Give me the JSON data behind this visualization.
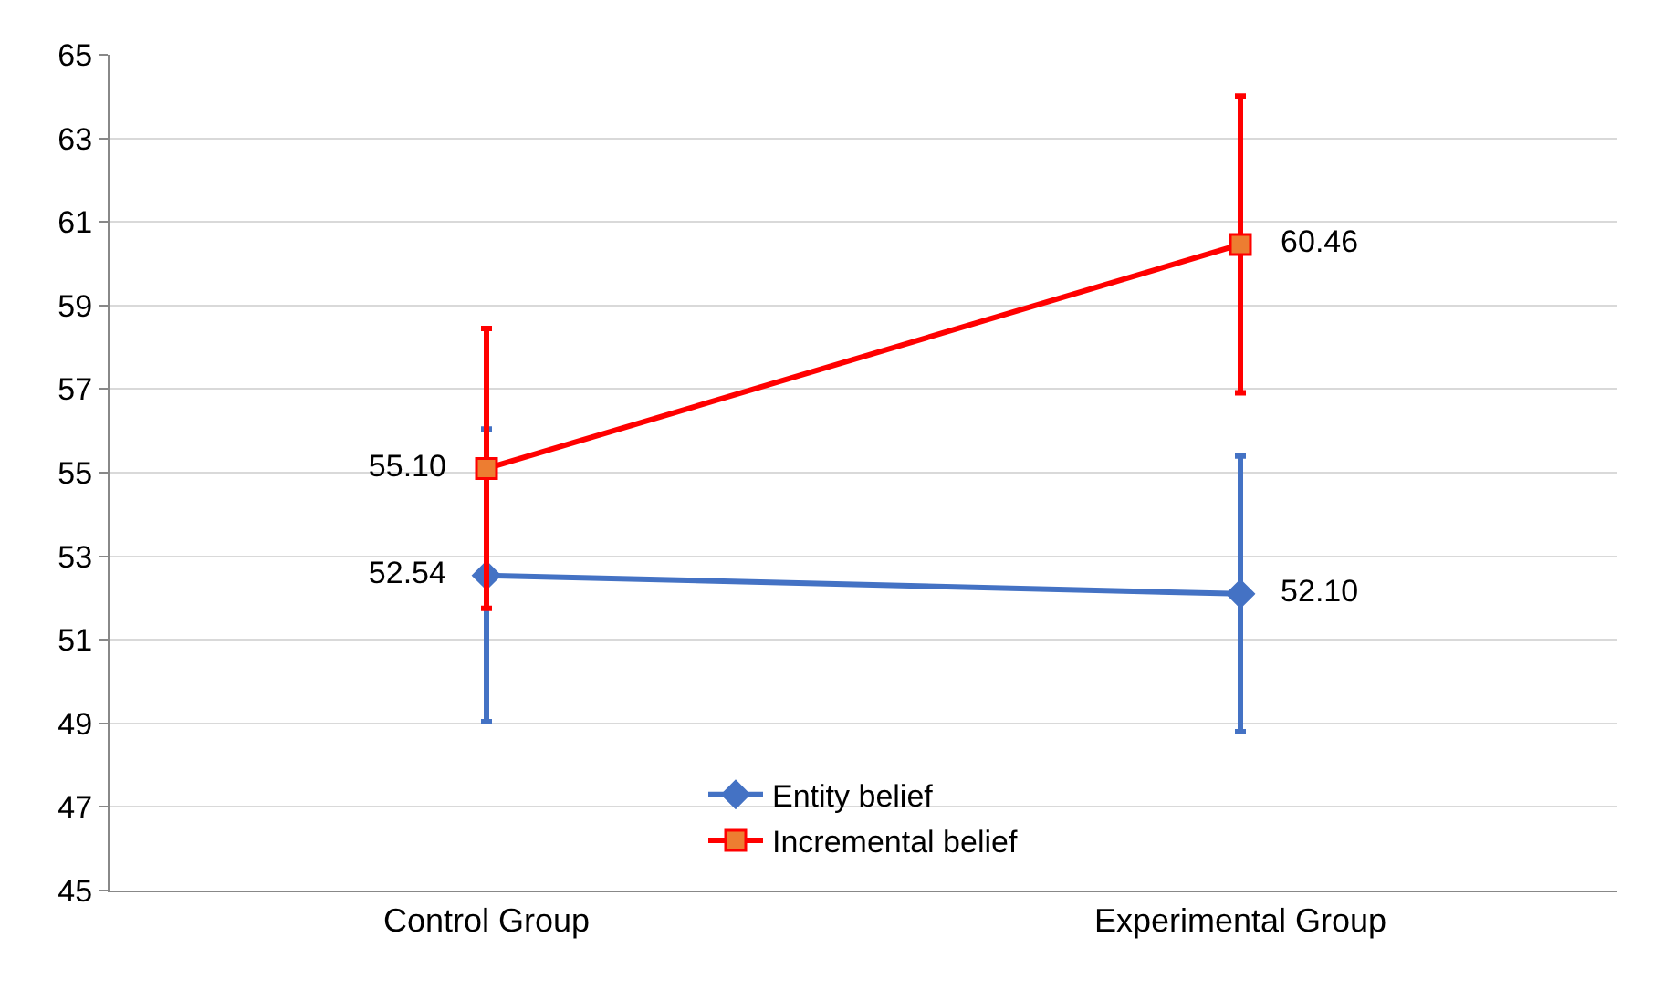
{
  "chart_data": {
    "type": "line",
    "categories": [
      "Control Group",
      "Experimental Group"
    ],
    "series": [
      {
        "name": "Entity belief",
        "color": "#4472c4",
        "marker": "diamond",
        "values": [
          52.54,
          52.1
        ],
        "value_labels": [
          "52.54",
          "52.10"
        ],
        "errors": [
          3.5,
          3.3
        ]
      },
      {
        "name": "Incremental belief",
        "color": "#ff0000",
        "marker": "square",
        "values": [
          55.1,
          60.46
        ],
        "value_labels": [
          "55.10",
          "60.46"
        ],
        "errors": [
          3.35,
          3.55
        ]
      }
    ],
    "ylim": [
      45,
      65
    ],
    "yticks": [
      45,
      47,
      49,
      51,
      53,
      55,
      57,
      59,
      61,
      63,
      65
    ],
    "grid": "y",
    "legend": "bottom",
    "line_style": "solid"
  }
}
